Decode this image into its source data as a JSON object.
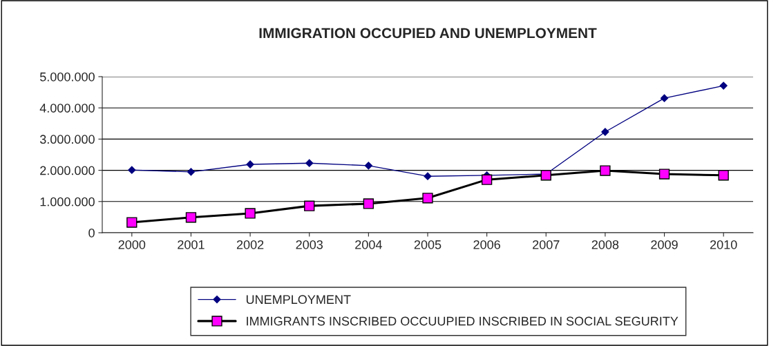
{
  "chart_data": {
    "type": "line",
    "title": "IMMIGRATION OCCUPIED AND UNEMPLOYMENT",
    "categories": [
      "2000",
      "2001",
      "2002",
      "2003",
      "2004",
      "2005",
      "2006",
      "2007",
      "2008",
      "2009",
      "2010"
    ],
    "series": [
      {
        "name": "UNEMPLOYMENT",
        "color": "#000080",
        "marker": "diamond",
        "values": [
          2010000,
          1950000,
          2190000,
          2230000,
          2150000,
          1810000,
          1840000,
          1880000,
          3230000,
          4310000,
          4710000
        ]
      },
      {
        "name": "IMMIGRANTS INSCRIBED OCCUUPIED INSCRIBED IN SOCIAL SEGURITY",
        "color": "#ff00ff",
        "marker": "square",
        "values": [
          330000,
          490000,
          620000,
          860000,
          930000,
          1110000,
          1700000,
          1840000,
          1990000,
          1880000,
          1840000
        ]
      }
    ],
    "ylim": [
      0,
      5000000
    ],
    "yticks": [
      {
        "value": 0,
        "label": "0"
      },
      {
        "value": 1000000,
        "label": "1.000.000"
      },
      {
        "value": 2000000,
        "label": "2.000.000"
      },
      {
        "value": 3000000,
        "label": "3.000.000"
      },
      {
        "value": 4000000,
        "label": "4.000.000"
      },
      {
        "value": 5000000,
        "label": "5.000.000"
      }
    ],
    "grid": "y",
    "legend": "bottom"
  }
}
